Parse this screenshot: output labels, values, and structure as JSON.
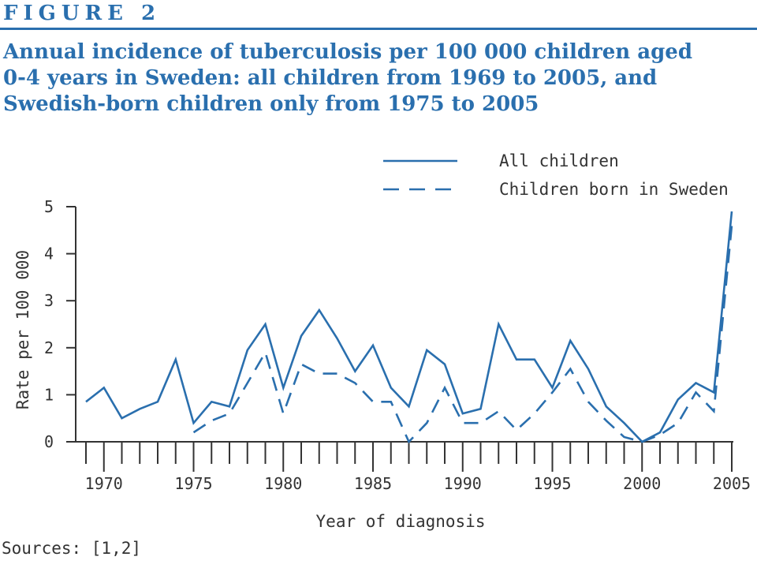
{
  "figure_label": "FIGURE 2",
  "title": "Annual incidence of tuberculosis per 100 000 children aged\n0-4 years in Sweden: all children from 1969 to 2005, and\nSwedish-born children only from 1975 to 2005",
  "sources": "Sources: [1,2]",
  "colors": {
    "accent": "#2a6fae",
    "axis": "#333333"
  },
  "chart_data": {
    "type": "line",
    "xlabel": "Year of diagnosis",
    "ylabel": "Rate per 100 000",
    "xlim": [
      1969,
      2005
    ],
    "ylim": [
      0,
      5
    ],
    "x_ticks": [
      1970,
      1975,
      1980,
      1985,
      1990,
      1995,
      2000,
      2005
    ],
    "y_ticks": [
      0,
      1,
      2,
      3,
      4,
      5
    ],
    "grid": false,
    "legend_position": "top-right",
    "series": [
      {
        "name": "All children",
        "style": "solid",
        "x": [
          1969,
          1970,
          1971,
          1972,
          1973,
          1974,
          1975,
          1976,
          1977,
          1978,
          1979,
          1980,
          1981,
          1982,
          1983,
          1984,
          1985,
          1986,
          1987,
          1988,
          1989,
          1990,
          1991,
          1992,
          1993,
          1994,
          1995,
          1996,
          1997,
          1998,
          1999,
          2000,
          2001,
          2002,
          2003,
          2004,
          2005
        ],
        "y": [
          0.85,
          1.15,
          0.5,
          0.7,
          0.85,
          1.75,
          0.4,
          0.85,
          0.75,
          1.95,
          2.5,
          1.15,
          2.25,
          2.8,
          2.2,
          1.5,
          2.05,
          1.15,
          0.75,
          1.95,
          1.65,
          0.6,
          0.7,
          2.5,
          1.75,
          1.75,
          1.15,
          2.15,
          1.55,
          0.75,
          0.4,
          0.0,
          0.2,
          0.9,
          1.25,
          1.05,
          4.9
        ]
      },
      {
        "name": "Children born in Sweden",
        "style": "dashed",
        "x": [
          1975,
          1976,
          1977,
          1978,
          1979,
          1980,
          1981,
          1982,
          1983,
          1984,
          1985,
          1986,
          1987,
          1988,
          1989,
          1990,
          1991,
          1992,
          1993,
          1994,
          1995,
          1996,
          1997,
          1998,
          1999,
          2000,
          2001,
          2002,
          2003,
          2004,
          2005
        ],
        "y": [
          0.2,
          0.45,
          0.6,
          1.25,
          1.9,
          0.6,
          1.65,
          1.45,
          1.45,
          1.25,
          0.85,
          0.85,
          0.0,
          0.4,
          1.15,
          0.4,
          0.4,
          0.65,
          0.25,
          0.6,
          1.05,
          1.55,
          0.85,
          0.45,
          0.1,
          0.0,
          0.15,
          0.4,
          1.05,
          0.65,
          4.6
        ]
      }
    ]
  }
}
